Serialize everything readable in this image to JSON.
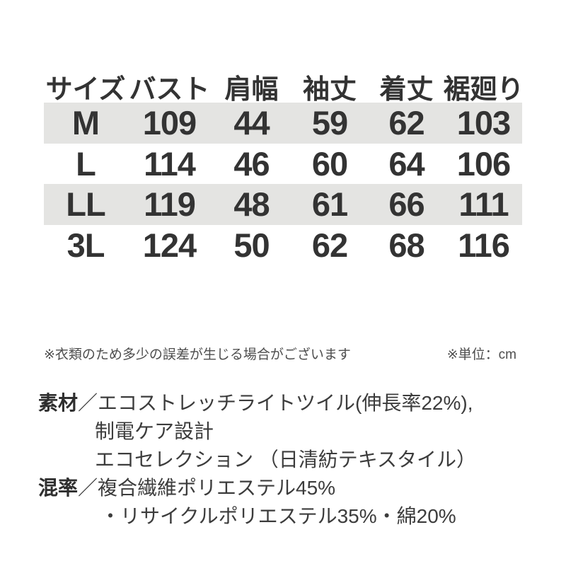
{
  "table": {
    "headers": [
      "サイズ",
      "バスト",
      "肩幅",
      "袖丈",
      "着丈",
      "裾廻り"
    ],
    "rows": [
      {
        "size": "M",
        "bust": "109",
        "shoulder": "44",
        "sleeve": "59",
        "length": "62",
        "hem": "103"
      },
      {
        "size": "L",
        "bust": "114",
        "shoulder": "46",
        "sleeve": "60",
        "length": "64",
        "hem": "106"
      },
      {
        "size": "LL",
        "bust": "119",
        "shoulder": "48",
        "sleeve": "61",
        "length": "66",
        "hem": "111"
      },
      {
        "size": "3L",
        "bust": "124",
        "shoulder": "50",
        "sleeve": "62",
        "length": "68",
        "hem": "116"
      }
    ]
  },
  "notes": {
    "disclaimer": "※衣類のため多少の誤差が生じる場合がございます",
    "unit": "※単位：cm"
  },
  "details": {
    "sep": "／",
    "material_label": "素材",
    "material_line1": "エコストレッチライトツイル(伸長率22%),",
    "material_line2": "制電ケア設計",
    "material_line3": "エコセレクション （日清紡テキスタイル）",
    "composition_label": "混率",
    "composition_line1": "複合繊維ポリエステル45%",
    "composition_line2": "・リサイクルポリエステル35%・綿20%"
  },
  "colors": {
    "row_shade": "#e4e4e2",
    "table_text": "#333333",
    "note_text": "#4e4e4e",
    "detail_text": "#3c3c3c"
  }
}
